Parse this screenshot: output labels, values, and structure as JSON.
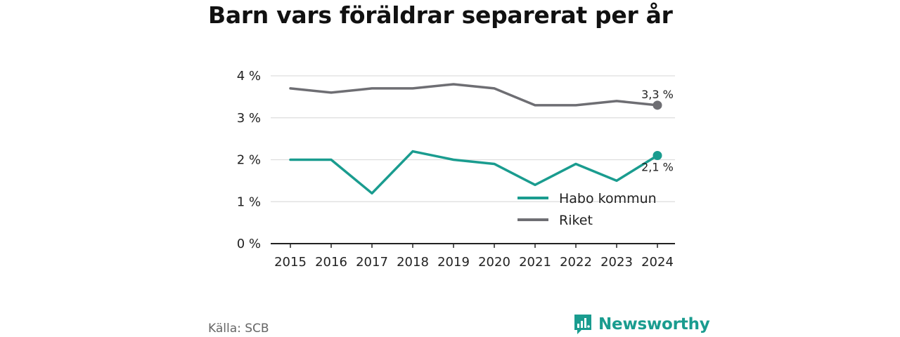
{
  "title": "Barn vars föräldrar separerat per år",
  "source": "Källa: SCB",
  "brand": {
    "name": "Newsworthy",
    "icon": "newsworthy-logo-icon",
    "color": "#1a9c8f"
  },
  "chart_data": {
    "type": "line",
    "x": [
      "2015",
      "2016",
      "2017",
      "2018",
      "2019",
      "2020",
      "2021",
      "2022",
      "2023",
      "2024"
    ],
    "ylim": [
      0,
      4
    ],
    "yticks": [
      0,
      1,
      2,
      3,
      4
    ],
    "ytick_labels": [
      "0 %",
      "1 %",
      "2 %",
      "3 %",
      "4 %"
    ],
    "grid": true,
    "legend_position": "bottom-right",
    "series": [
      {
        "name": "Habo kommun",
        "color": "#1a9c8f",
        "values": [
          2.0,
          2.0,
          1.2,
          2.2,
          2.0,
          1.9,
          1.4,
          1.9,
          1.5,
          2.1
        ],
        "end_label": "2,1 %"
      },
      {
        "name": "Riket",
        "color": "#6e6e73",
        "values": [
          3.7,
          3.6,
          3.7,
          3.7,
          3.8,
          3.7,
          3.3,
          3.3,
          3.4,
          3.3
        ],
        "end_label": "3,3 %"
      }
    ]
  }
}
